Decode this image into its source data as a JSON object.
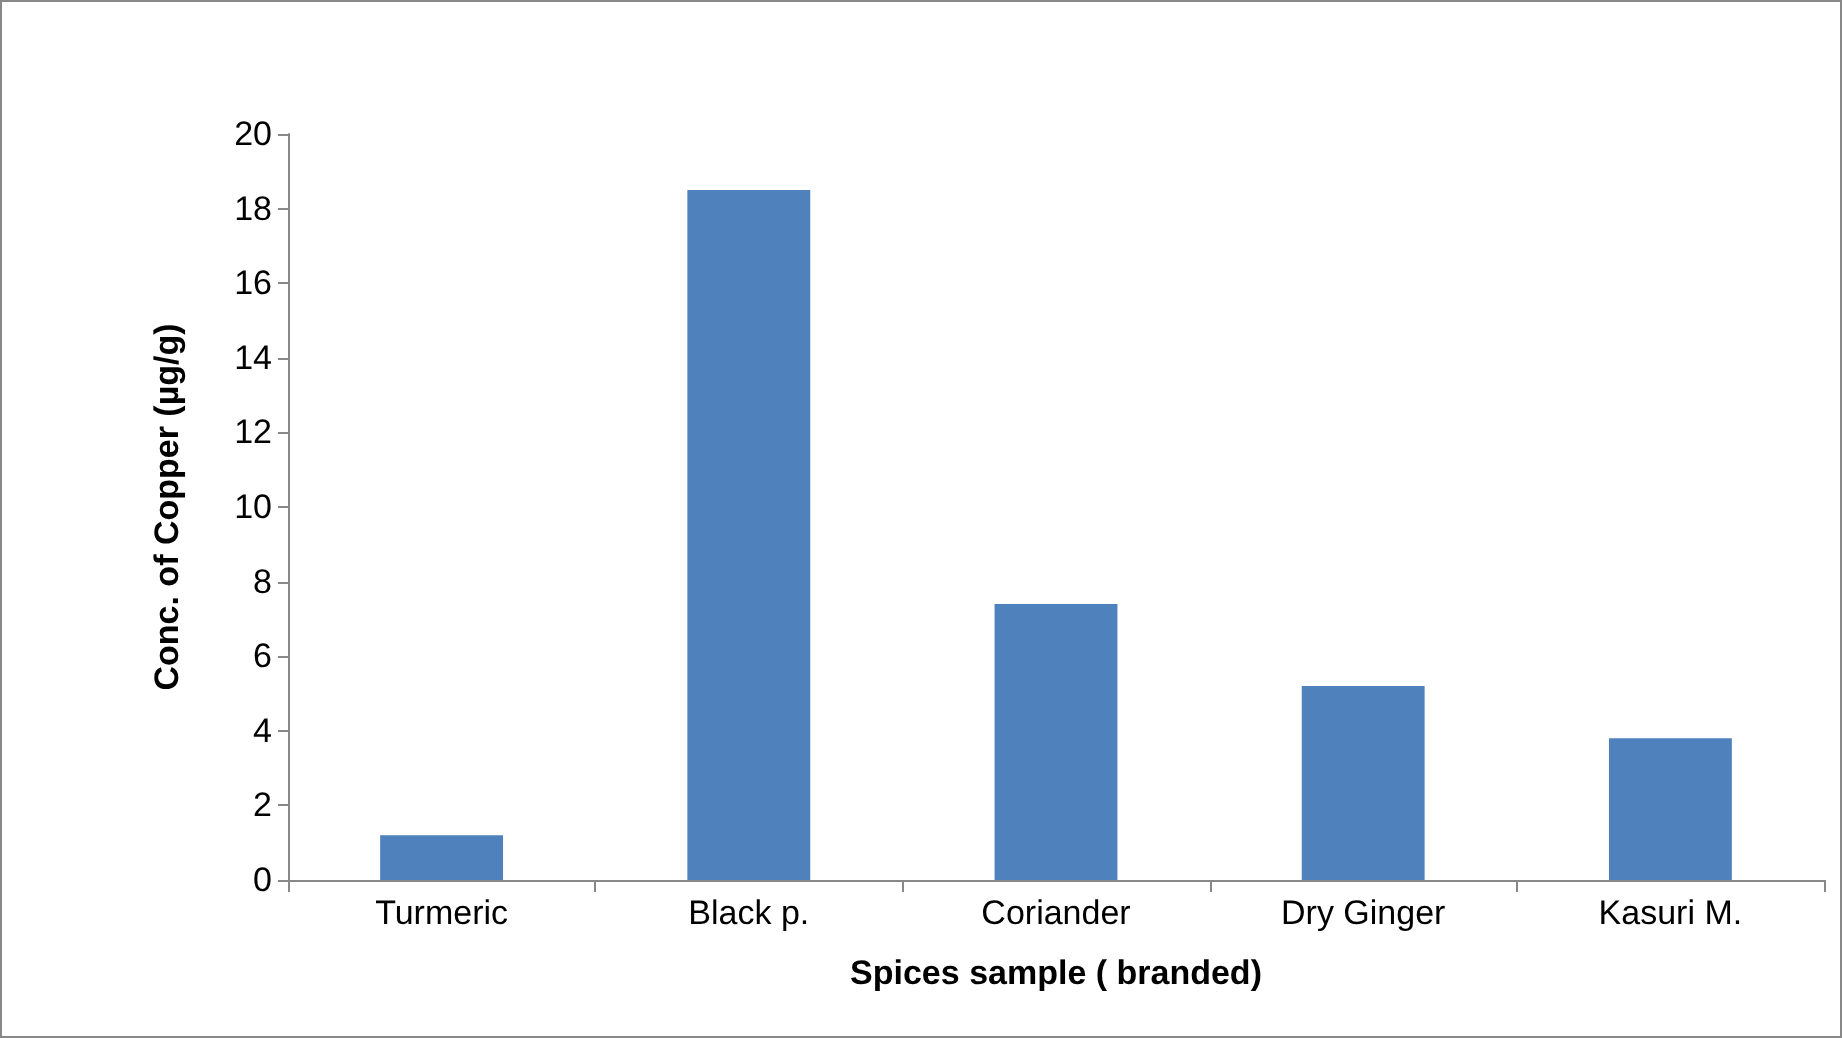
{
  "chart_data": {
    "type": "bar",
    "xlabel": "Spices sample ( branded)",
    "ylabel": "Conc. of Copper (µg/g)",
    "categories": [
      "Turmeric",
      "Black p.",
      "Coriander",
      "Dry Ginger",
      "Kasuri M."
    ],
    "values": [
      1.2,
      18.5,
      7.4,
      5.2,
      3.8
    ],
    "color": "#4f81bd",
    "ylim": [
      0,
      20
    ],
    "yticks": [
      0,
      2,
      4,
      6,
      8,
      10,
      12,
      14,
      16,
      18,
      20
    ],
    "grid": false
  }
}
